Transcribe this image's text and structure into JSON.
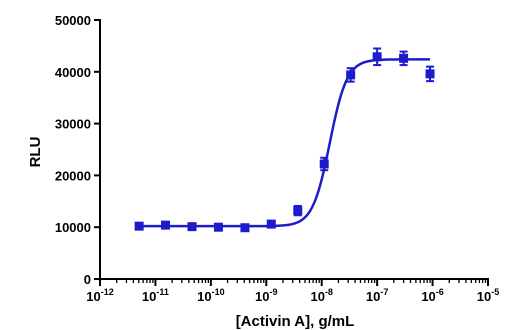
{
  "chart_data": {
    "type": "scatter",
    "title": "",
    "xlabel": "[Activin A], g/mL",
    "ylabel": "RLU",
    "x_scale": "log",
    "xlim": [
      1e-12,
      1e-05
    ],
    "ylim": [
      0,
      50000
    ],
    "x_ticks": [
      {
        "value": 1e-12,
        "base": "10",
        "exp": "-12"
      },
      {
        "value": 1e-11,
        "base": "10",
        "exp": "-11"
      },
      {
        "value": 1e-10,
        "base": "10",
        "exp": "-10"
      },
      {
        "value": 1e-09,
        "base": "10",
        "exp": "-9"
      },
      {
        "value": 1e-08,
        "base": "10",
        "exp": "-8"
      },
      {
        "value": 1e-07,
        "base": "10",
        "exp": "-7"
      },
      {
        "value": 1e-06,
        "base": "10",
        "exp": "-6"
      },
      {
        "value": 1e-05,
        "base": "10",
        "exp": "-5"
      }
    ],
    "y_ticks": [
      {
        "value": 0,
        "label": "0"
      },
      {
        "value": 10000,
        "label": "10000"
      },
      {
        "value": 20000,
        "label": "20000"
      },
      {
        "value": 30000,
        "label": "30000"
      },
      {
        "value": 40000,
        "label": "40000"
      },
      {
        "value": 50000,
        "label": "50000"
      }
    ],
    "grid": false,
    "legend": "none",
    "color": "#1c1ccc",
    "points": [
      {
        "x": 5.08e-12,
        "y": 10200,
        "err": 400
      },
      {
        "x": 1.52e-11,
        "y": 10400,
        "err": 400
      },
      {
        "x": 4.57e-11,
        "y": 10100,
        "err": 400
      },
      {
        "x": 1.37e-10,
        "y": 10000,
        "err": 400
      },
      {
        "x": 4.12e-10,
        "y": 9900,
        "err": 400
      },
      {
        "x": 1.23e-09,
        "y": 10600,
        "err": 500
      },
      {
        "x": 3.7e-09,
        "y": 13200,
        "err": 900
      },
      {
        "x": 1.11e-08,
        "y": 22200,
        "err": 1200
      },
      {
        "x": 3.33e-08,
        "y": 39400,
        "err": 1300
      },
      {
        "x": 1e-07,
        "y": 42900,
        "err": 1600
      },
      {
        "x": 3e-07,
        "y": 42600,
        "err": 1300
      },
      {
        "x": 9e-07,
        "y": 39600,
        "err": 1400
      }
    ],
    "fit": {
      "bottom": 10200,
      "top": 42400,
      "ec50": 1.4e-08,
      "hill": 2.8
    }
  }
}
